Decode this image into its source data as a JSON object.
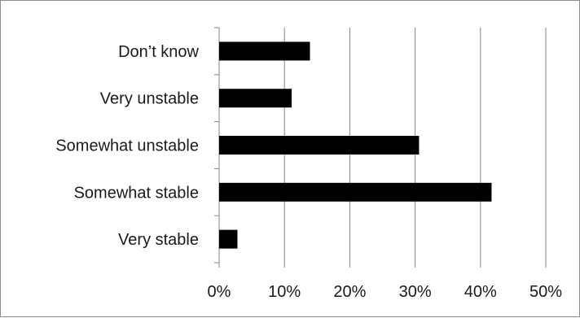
{
  "chart_data": {
    "type": "bar",
    "orientation": "horizontal",
    "categories": [
      "Very stable",
      "Somewhat stable",
      "Somewhat unstable",
      "Very unstable",
      "Don’t know"
    ],
    "values": [
      2.8,
      41.7,
      30.6,
      11.1,
      13.9
    ],
    "value_unit": "%",
    "xlim": [
      0,
      50
    ],
    "xticks": [
      0,
      10,
      20,
      30,
      40,
      50
    ],
    "xtick_labels": [
      "0%",
      "10%",
      "20%",
      "30%",
      "40%",
      "50%"
    ],
    "title": "",
    "xlabel": "",
    "ylabel": "",
    "grid": "vertical",
    "legend": "none",
    "bar_color": "#000000",
    "grid_color": "#868686"
  }
}
